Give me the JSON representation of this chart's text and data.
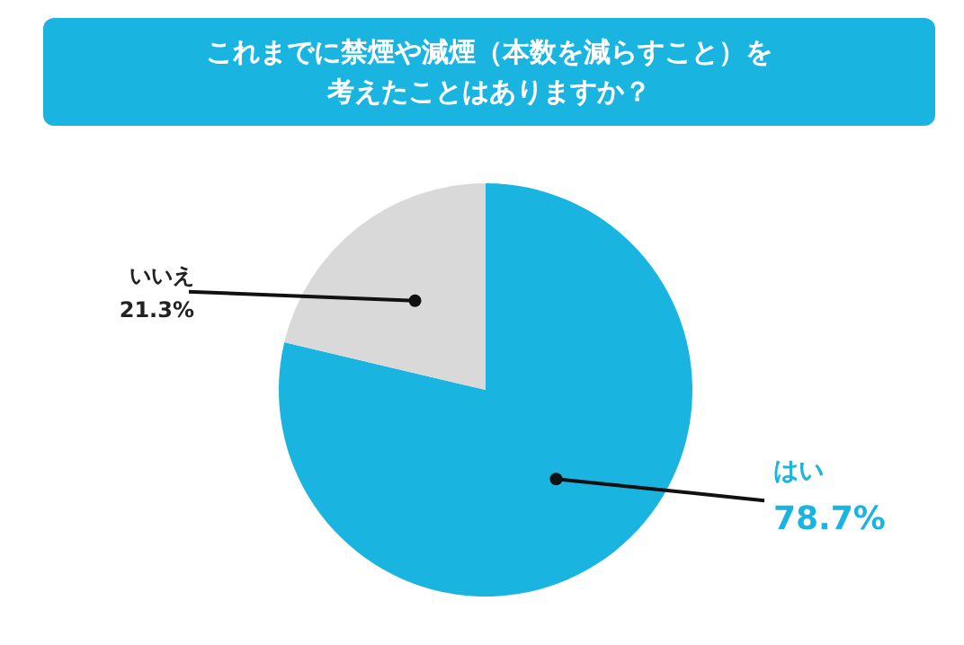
{
  "chart_data": {
    "type": "pie",
    "title": "これまでに禁煙や減煙（本数を減らすこと）を考えたことはありますか？",
    "categories": [
      "はい",
      "いいえ"
    ],
    "values": [
      78.7,
      21.3
    ],
    "value_labels": [
      "78.7%",
      "21.3%"
    ],
    "colors": [
      "#1ab4e0",
      "#d9d9d9"
    ]
  }
}
